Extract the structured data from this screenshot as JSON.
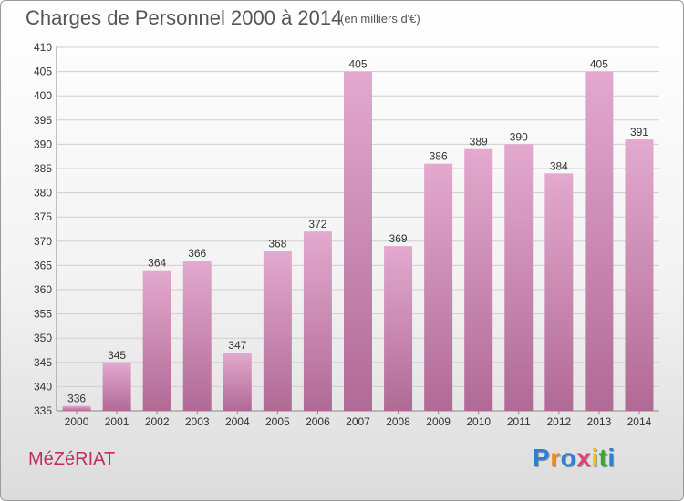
{
  "chart_data": {
    "type": "bar",
    "title": "Charges de Personnel 2000 à 2014",
    "unit_note": "(en milliers d'€)",
    "categories": [
      "2000",
      "2001",
      "2002",
      "2003",
      "2004",
      "2005",
      "2006",
      "2007",
      "2008",
      "2009",
      "2010",
      "2011",
      "2012",
      "2013",
      "2014"
    ],
    "values": [
      336,
      345,
      364,
      366,
      347,
      368,
      372,
      405,
      369,
      386,
      389,
      390,
      384,
      405,
      391
    ],
    "ylim": [
      335,
      410
    ],
    "yticks": [
      335,
      340,
      345,
      350,
      355,
      360,
      365,
      370,
      375,
      380,
      385,
      390,
      395,
      400,
      405,
      410
    ],
    "grid": true,
    "bar_color_top": "#e3a9cf",
    "bar_color_bottom": "#b06a95"
  },
  "footer": {
    "place": "MéZéRIAT",
    "logo_letters": [
      "P",
      "r",
      "o",
      "x",
      "i",
      "t",
      "i"
    ],
    "logo_colors": [
      "#2e7fd3",
      "#f08a1a",
      "#2e7fd3",
      "#e83a7a",
      "#f5c400",
      "#36a636",
      "#2e7fd3"
    ]
  }
}
